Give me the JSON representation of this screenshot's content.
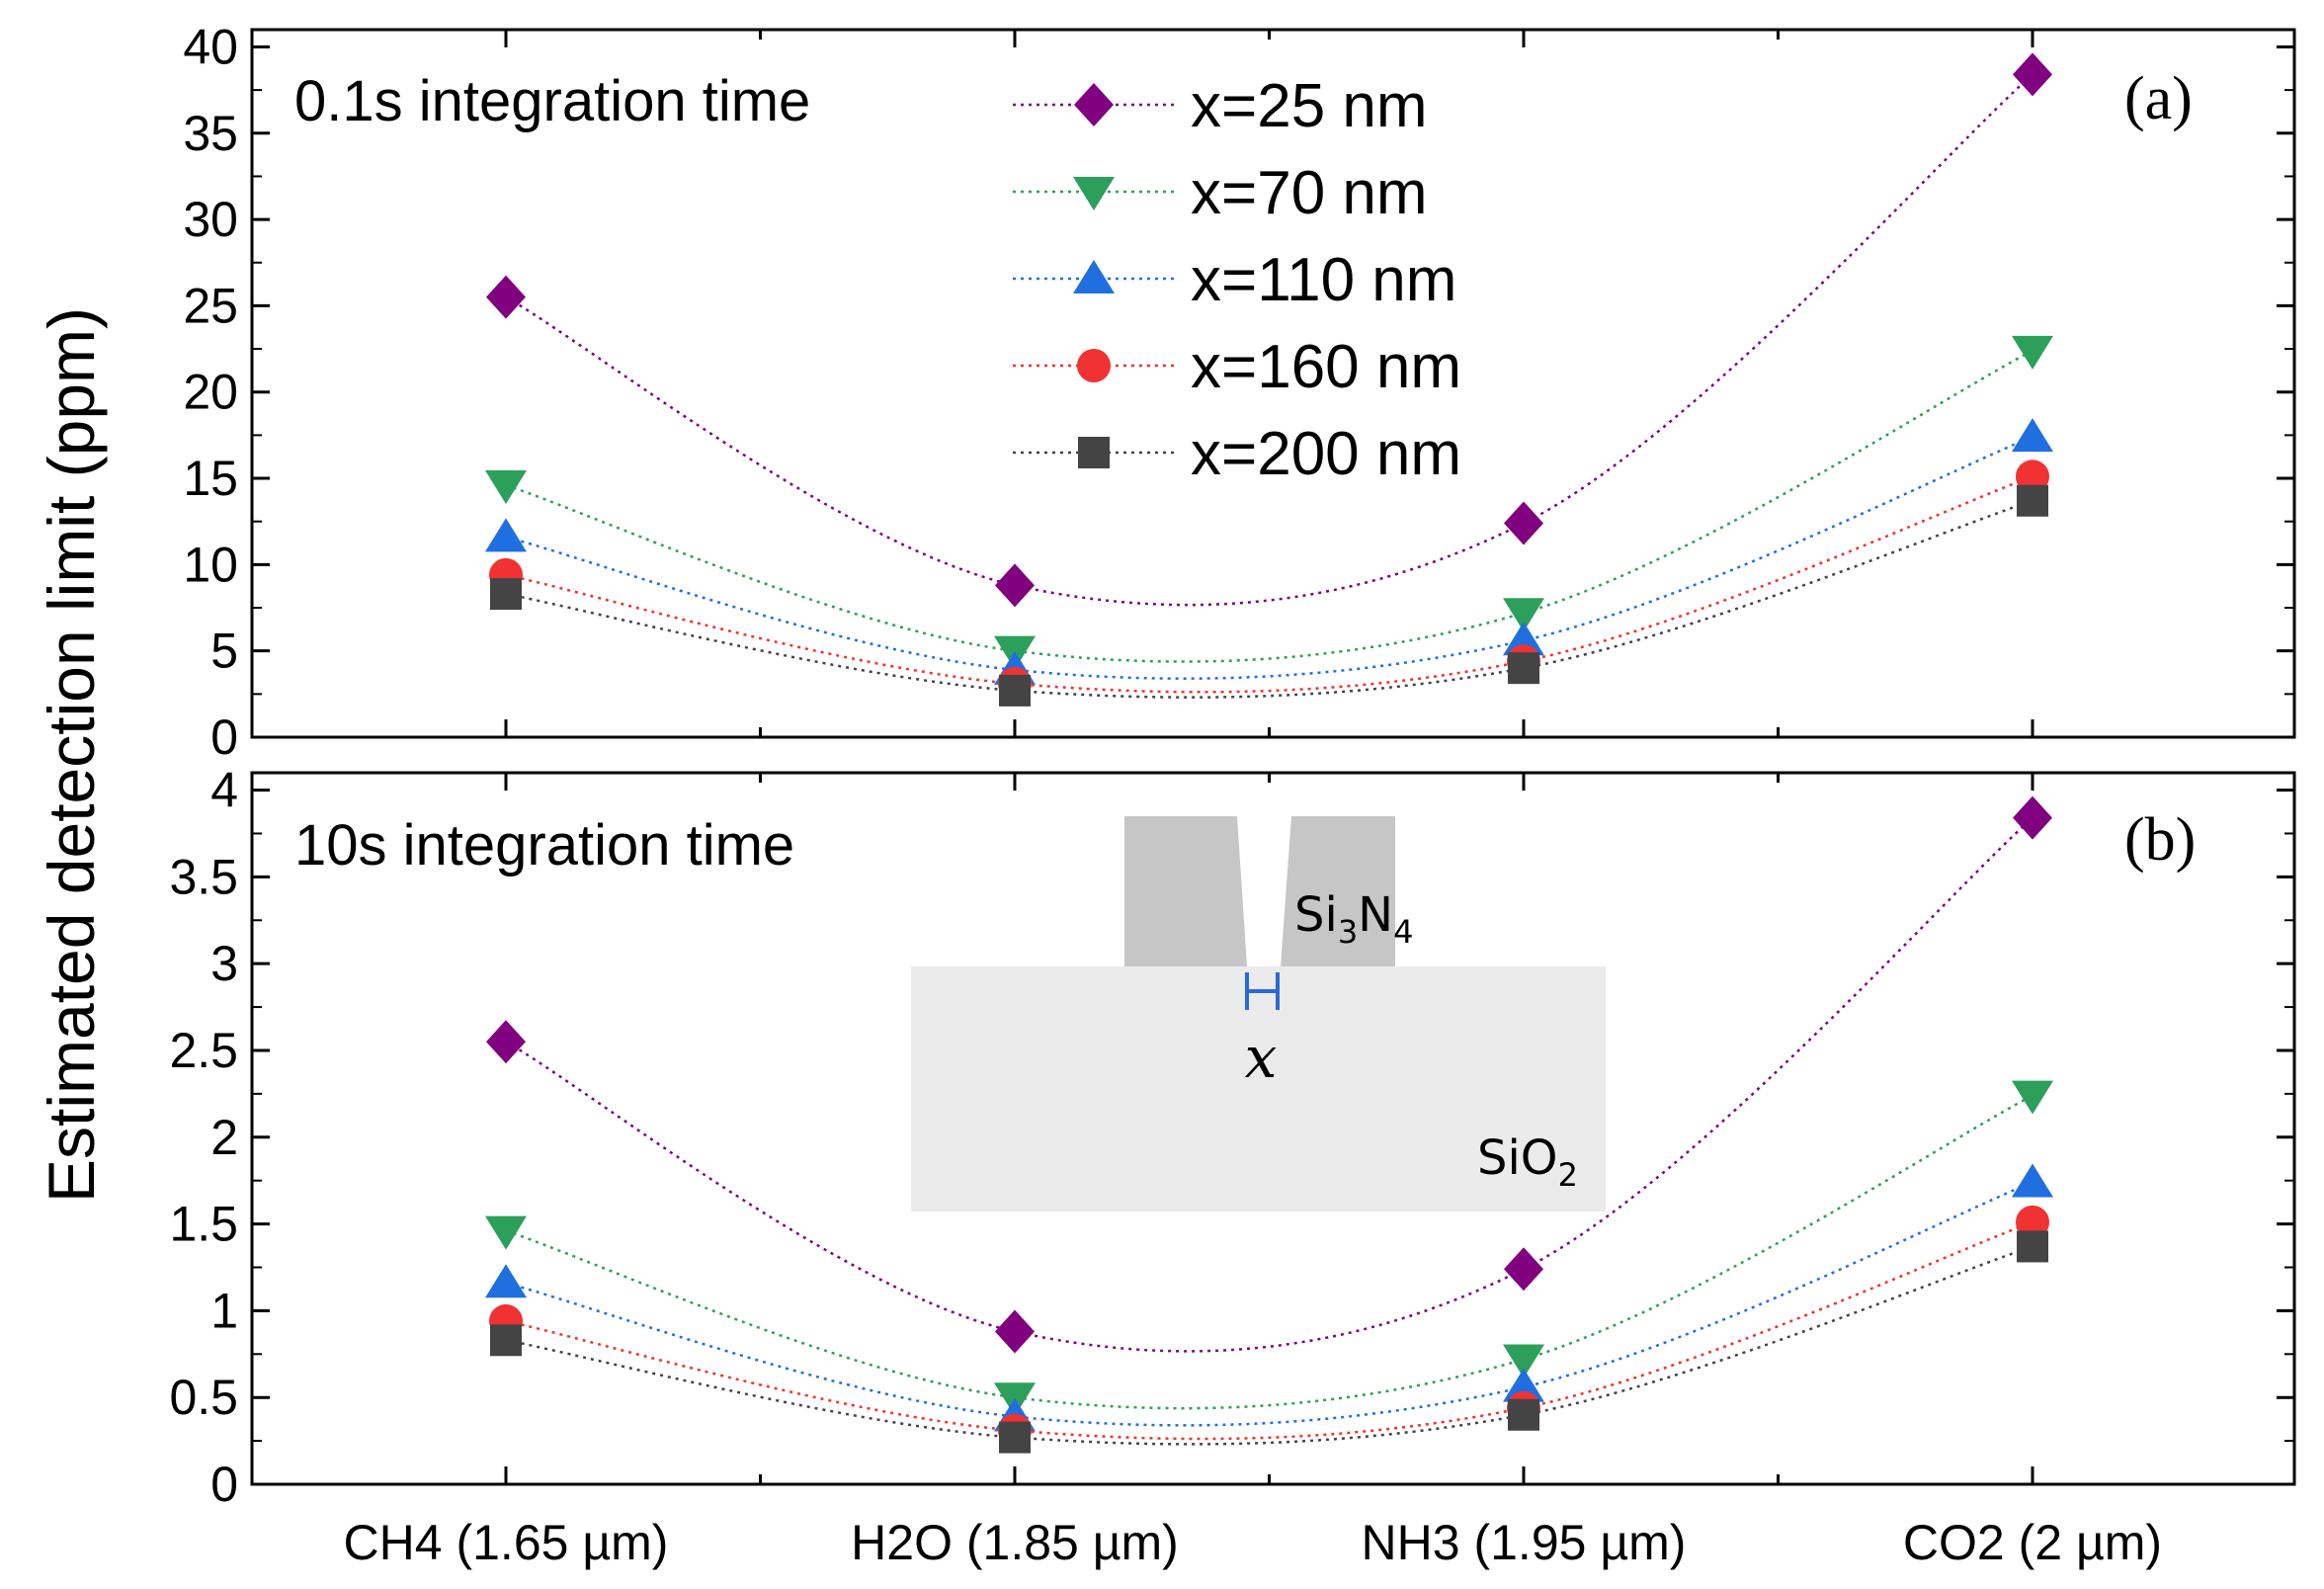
{
  "chart_data": [
    {
      "type": "line",
      "panel_label": "(a)",
      "annotation": "0.1s integration time",
      "ylabel": "Estimated detection limit (ppm)",
      "categories": [
        "CH4 (1.65 µm)",
        "H2O (1.85 µm)",
        "NH3 (1.95 µm)",
        "CO2 (2 µm)"
      ],
      "ylim": [
        0,
        41
      ],
      "yticks": [
        "0",
        "5",
        "10",
        "15",
        "20",
        "25",
        "30",
        "35",
        "40"
      ],
      "series": [
        {
          "name": "x=25 nm",
          "marker": "diamond",
          "color": "#800080",
          "values": [
            25.5,
            8.8,
            12.4,
            38.4
          ]
        },
        {
          "name": "x=70 nm",
          "marker": "triangle-down",
          "color": "#2ca05a",
          "values": [
            14.6,
            5.0,
            7.2,
            22.4
          ]
        },
        {
          "name": "x=110 nm",
          "marker": "triangle-up",
          "color": "#1f6fe0",
          "values": [
            11.6,
            3.9,
            5.6,
            17.4
          ]
        },
        {
          "name": "x=160 nm",
          "marker": "circle",
          "color": "#f03232",
          "values": [
            9.4,
            3.1,
            4.4,
            15.1
          ]
        },
        {
          "name": "x=200 nm",
          "marker": "square",
          "color": "#444444",
          "values": [
            8.3,
            2.7,
            4.0,
            13.7
          ]
        }
      ]
    },
    {
      "type": "line",
      "panel_label": "(b)",
      "annotation": "10s integration time",
      "categories": [
        "CH4 (1.65 µm)",
        "H2O (1.85 µm)",
        "NH3 (1.95 µm)",
        "CO2 (2 µm)"
      ],
      "ylim": [
        0,
        4.1
      ],
      "yticks": [
        "0",
        "0.5",
        "1",
        "1.5",
        "2",
        "2.5",
        "3",
        "3.5",
        "4"
      ],
      "series": [
        {
          "name": "x=25 nm",
          "marker": "diamond",
          "color": "#800080",
          "values": [
            2.55,
            0.88,
            1.24,
            3.84
          ]
        },
        {
          "name": "x=70 nm",
          "marker": "triangle-down",
          "color": "#2ca05a",
          "values": [
            1.46,
            0.5,
            0.72,
            2.24
          ]
        },
        {
          "name": "x=110 nm",
          "marker": "triangle-up",
          "color": "#1f6fe0",
          "values": [
            1.16,
            0.39,
            0.56,
            1.74
          ]
        },
        {
          "name": "x=160 nm",
          "marker": "circle",
          "color": "#f03232",
          "values": [
            0.94,
            0.31,
            0.44,
            1.51
          ]
        },
        {
          "name": "x=200 nm",
          "marker": "square",
          "color": "#444444",
          "values": [
            0.83,
            0.27,
            0.4,
            1.37
          ]
        }
      ],
      "inset": {
        "top_material_main": "Si",
        "top_material_sub1": "3",
        "top_material_mid": "N",
        "top_material_sub2": "4",
        "bottom_material_main": "SiO",
        "bottom_material_sub": "2",
        "gap_symbol": "𝑥"
      }
    }
  ]
}
